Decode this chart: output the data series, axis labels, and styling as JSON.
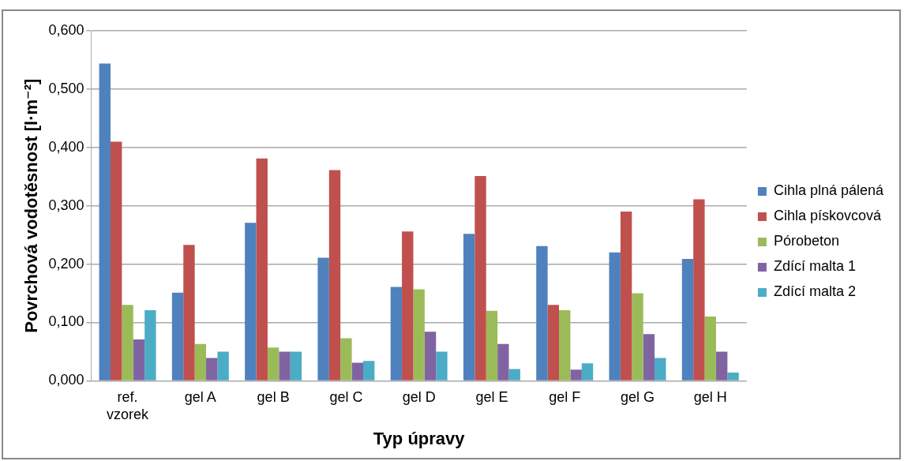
{
  "chart_data": {
    "type": "bar",
    "xlabel": "Typ úpravy",
    "ylabel": "Povrchová vodotěsnost [l·m⁻²]",
    "categories": [
      "ref. vzorek",
      "gel A",
      "gel B",
      "gel C",
      "gel D",
      "gel E",
      "gel F",
      "gel G",
      "gel H"
    ],
    "series": [
      {
        "name": "Cihla plná pálená",
        "color": "#4f81bd",
        "values": [
          0.544,
          0.151,
          0.271,
          0.211,
          0.161,
          0.252,
          0.231,
          0.22,
          0.209
        ]
      },
      {
        "name": "Cihla pískovcová",
        "color": "#c0504d",
        "values": [
          0.41,
          0.233,
          0.381,
          0.361,
          0.256,
          0.351,
          0.13,
          0.29,
          0.311
        ]
      },
      {
        "name": "Pórobeton",
        "color": "#9bbb59",
        "values": [
          0.13,
          0.063,
          0.057,
          0.073,
          0.157,
          0.12,
          0.121,
          0.15,
          0.11
        ]
      },
      {
        "name": "Zdící malta 1",
        "color": "#8064a2",
        "values": [
          0.071,
          0.039,
          0.05,
          0.031,
          0.084,
          0.063,
          0.019,
          0.08,
          0.05
        ]
      },
      {
        "name": "Zdící malta 2",
        "color": "#4bacc6",
        "values": [
          0.121,
          0.05,
          0.05,
          0.034,
          0.05,
          0.02,
          0.03,
          0.039,
          0.014
        ]
      }
    ],
    "ylim": [
      0,
      0.6
    ],
    "yticks": [
      {
        "value": 0,
        "label": "0,000"
      },
      {
        "value": 0.1,
        "label": "0,100"
      },
      {
        "value": 0.2,
        "label": "0,200"
      },
      {
        "value": 0.3,
        "label": "0,300"
      },
      {
        "value": 0.4,
        "label": "0,400"
      },
      {
        "value": 0.5,
        "label": "0,500"
      },
      {
        "value": 0.6,
        "label": "0,600"
      }
    ],
    "grid": "y",
    "legend": "right"
  }
}
